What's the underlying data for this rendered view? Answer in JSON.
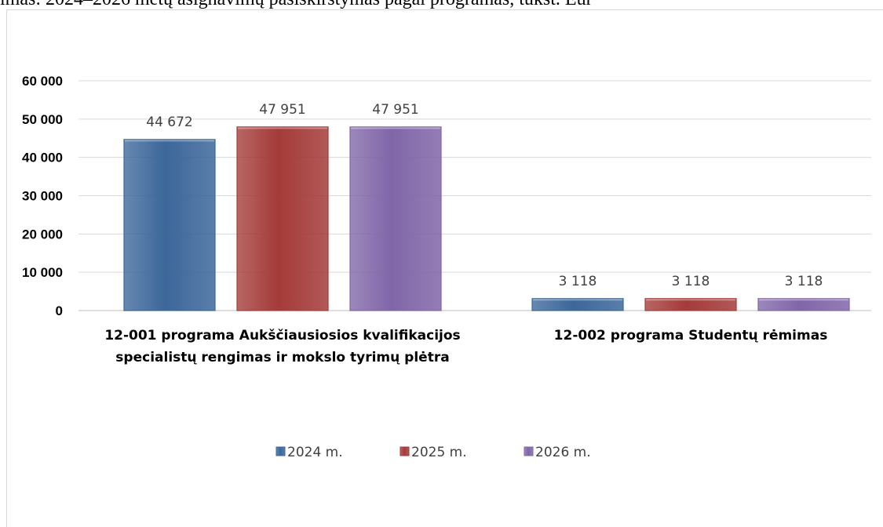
{
  "document": {
    "title": "imas: 2024–2026 metų asignavimų pasiskirstymas pagal programas, tūkst. Eur"
  },
  "chart_data": {
    "type": "bar",
    "categories": [
      [
        "12-001 programa  Aukščiausiosios kvalifikacijos",
        "specialistų rengimas ir mokslo tyrimų plėtra"
      ],
      [
        "12-002 programa Studentų rėmimas"
      ]
    ],
    "series": [
      {
        "name": "2024 m.",
        "values": [
          44672,
          3118
        ],
        "labels": [
          "44 672",
          "3 118"
        ],
        "color": "#3c679a"
      },
      {
        "name": "2025 m.",
        "values": [
          47951,
          3118
        ],
        "labels": [
          "47 951",
          "3 118"
        ],
        "color": "#a43b39"
      },
      {
        "name": "2026 m.",
        "values": [
          47951,
          3118
        ],
        "labels": [
          "47 951",
          "3 118"
        ],
        "color": "#8066a8"
      }
    ],
    "ylim": [
      0,
      60000
    ],
    "yticks": [
      0,
      10000,
      20000,
      30000,
      40000,
      50000,
      60000
    ],
    "ytick_labels": [
      "0",
      "10 000",
      "20 000",
      "30 000",
      "40 000",
      "50 000",
      "60 000"
    ],
    "grid": true,
    "legend_position": "bottom"
  }
}
